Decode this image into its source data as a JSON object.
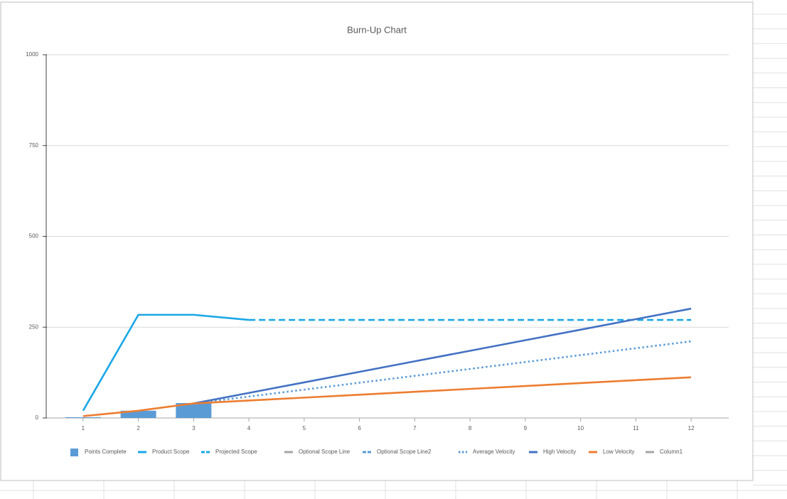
{
  "chart_data": {
    "type": "bar-line",
    "title": "Burn-Up Chart",
    "categories": [
      "1",
      "2",
      "3",
      "4",
      "5",
      "6",
      "7",
      "8",
      "9",
      "10",
      "11",
      "12"
    ],
    "ylim": [
      0,
      1000
    ],
    "yticks": [
      0,
      250,
      500,
      750,
      1000
    ],
    "grid": true,
    "series": [
      {
        "name": "Points Complete",
        "type": "bar",
        "color": "#5b9bd5",
        "values": [
          2,
          20,
          41,
          null,
          null,
          null,
          null,
          null,
          null,
          null,
          null,
          null
        ]
      },
      {
        "name": "Product Scope",
        "type": "line",
        "dash": "solid",
        "color": "#1aa7e6",
        "values": [
          20,
          284,
          284,
          270,
          null,
          null,
          null,
          null,
          null,
          null,
          null,
          null
        ]
      },
      {
        "name": "Projected Scope",
        "type": "line",
        "dash": "dashed",
        "color": "#1aa7e6",
        "values": [
          null,
          null,
          null,
          270,
          270,
          270,
          270,
          270,
          270,
          270,
          270,
          270
        ]
      },
      {
        "name": "Optional Scope Line",
        "type": "line",
        "dash": "solid",
        "color": "#a5a5a5",
        "values": [
          null,
          null,
          null,
          null,
          null,
          null,
          null,
          null,
          null,
          null,
          null,
          null
        ]
      },
      {
        "name": "Optional Scope Line2",
        "type": "line",
        "dash": "dashed",
        "color": "#5b9bd5",
        "values": [
          null,
          null,
          null,
          null,
          null,
          null,
          null,
          null,
          null,
          null,
          null,
          null
        ]
      },
      {
        "name": "Average Velocity",
        "type": "line",
        "dash": "dotted",
        "color": "#5b9bd5",
        "values": [
          null,
          null,
          40,
          59,
          78,
          97,
          116,
          135,
          154,
          173,
          192,
          211
        ]
      },
      {
        "name": "High Velocity",
        "type": "line",
        "dash": "solid",
        "color": "#4472c4",
        "values": [
          null,
          null,
          40,
          69,
          98,
          127,
          156,
          185,
          214,
          243,
          272,
          301
        ]
      },
      {
        "name": "Low Velocity",
        "type": "line",
        "dash": "solid",
        "color": "#ed7d31",
        "values": [
          5,
          20,
          40,
          48,
          56,
          64,
          72,
          80,
          88,
          96,
          104,
          112
        ]
      },
      {
        "name": "Column1",
        "type": "line",
        "dash": "solid",
        "color": "#a5a5a5",
        "values": [
          null,
          null,
          null,
          null,
          null,
          null,
          null,
          null,
          null,
          null,
          null,
          null
        ]
      }
    ]
  }
}
